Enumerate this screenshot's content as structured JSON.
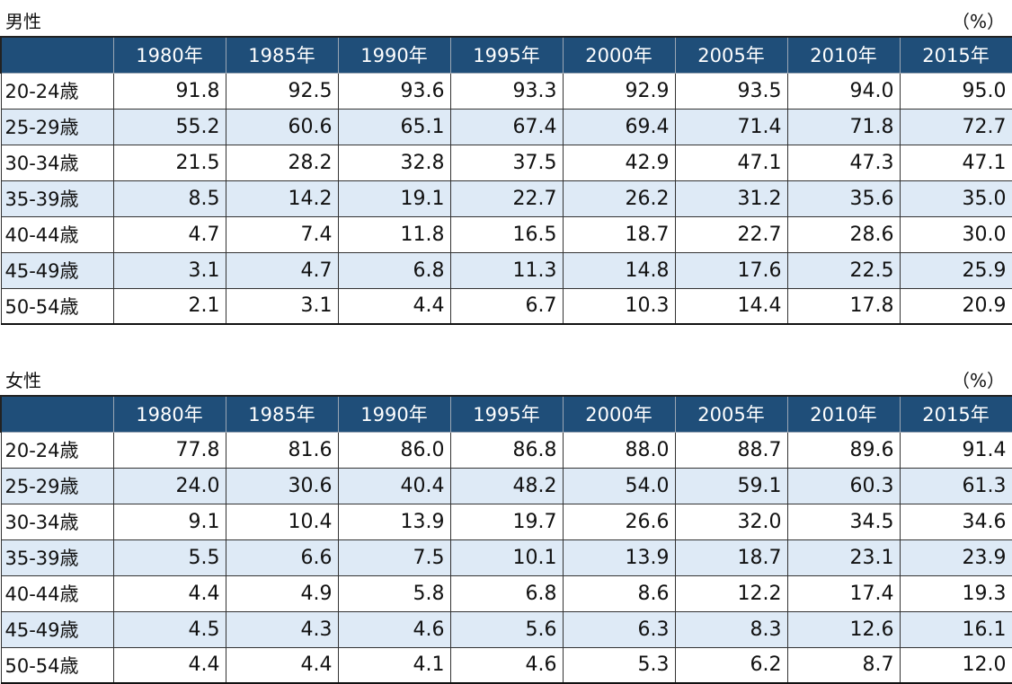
{
  "tables": [
    {
      "label": "男性",
      "unit": "（%）",
      "years": [
        "1980年",
        "1985年",
        "1990年",
        "1995年",
        "2000年",
        "2005年",
        "2010年",
        "2015年"
      ],
      "rows": [
        {
          "age": "20-24歳",
          "values": [
            "91.8",
            "92.5",
            "93.6",
            "93.3",
            "92.9",
            "93.5",
            "94.0",
            "95.0"
          ]
        },
        {
          "age": "25-29歳",
          "values": [
            "55.2",
            "60.6",
            "65.1",
            "67.4",
            "69.4",
            "71.4",
            "71.8",
            "72.7"
          ]
        },
        {
          "age": "30-34歳",
          "values": [
            "21.5",
            "28.2",
            "32.8",
            "37.5",
            "42.9",
            "47.1",
            "47.3",
            "47.1"
          ]
        },
        {
          "age": "35-39歳",
          "values": [
            "8.5",
            "14.2",
            "19.1",
            "22.7",
            "26.2",
            "31.2",
            "35.6",
            "35.0"
          ]
        },
        {
          "age": "40-44歳",
          "values": [
            "4.7",
            "7.4",
            "11.8",
            "16.5",
            "18.7",
            "22.7",
            "28.6",
            "30.0"
          ]
        },
        {
          "age": "45-49歳",
          "values": [
            "3.1",
            "4.7",
            "6.8",
            "11.3",
            "14.8",
            "17.6",
            "22.5",
            "25.9"
          ]
        },
        {
          "age": "50-54歳",
          "values": [
            "2.1",
            "3.1",
            "4.4",
            "6.7",
            "10.3",
            "14.4",
            "17.8",
            "20.9"
          ]
        }
      ]
    },
    {
      "label": "女性",
      "unit": "（%）",
      "years": [
        "1980年",
        "1985年",
        "1990年",
        "1995年",
        "2000年",
        "2005年",
        "2010年",
        "2015年"
      ],
      "rows": [
        {
          "age": "20-24歳",
          "values": [
            "77.8",
            "81.6",
            "86.0",
            "86.8",
            "88.0",
            "88.7",
            "89.6",
            "91.4"
          ]
        },
        {
          "age": "25-29歳",
          "values": [
            "24.0",
            "30.6",
            "40.4",
            "48.2",
            "54.0",
            "59.1",
            "60.3",
            "61.3"
          ]
        },
        {
          "age": "30-34歳",
          "values": [
            "9.1",
            "10.4",
            "13.9",
            "19.7",
            "26.6",
            "32.0",
            "34.5",
            "34.6"
          ]
        },
        {
          "age": "35-39歳",
          "values": [
            "5.5",
            "6.6",
            "7.5",
            "10.1",
            "13.9",
            "18.7",
            "23.1",
            "23.9"
          ]
        },
        {
          "age": "40-44歳",
          "values": [
            "4.4",
            "4.9",
            "5.8",
            "6.8",
            "8.6",
            "12.2",
            "17.4",
            "19.3"
          ]
        },
        {
          "age": "45-49歳",
          "values": [
            "4.5",
            "4.3",
            "4.6",
            "5.6",
            "6.3",
            "8.3",
            "12.6",
            "16.1"
          ]
        },
        {
          "age": "50-54歳",
          "values": [
            "4.4",
            "4.4",
            "4.1",
            "4.6",
            "5.3",
            "6.2",
            "8.7",
            "12.0"
          ]
        }
      ]
    }
  ]
}
